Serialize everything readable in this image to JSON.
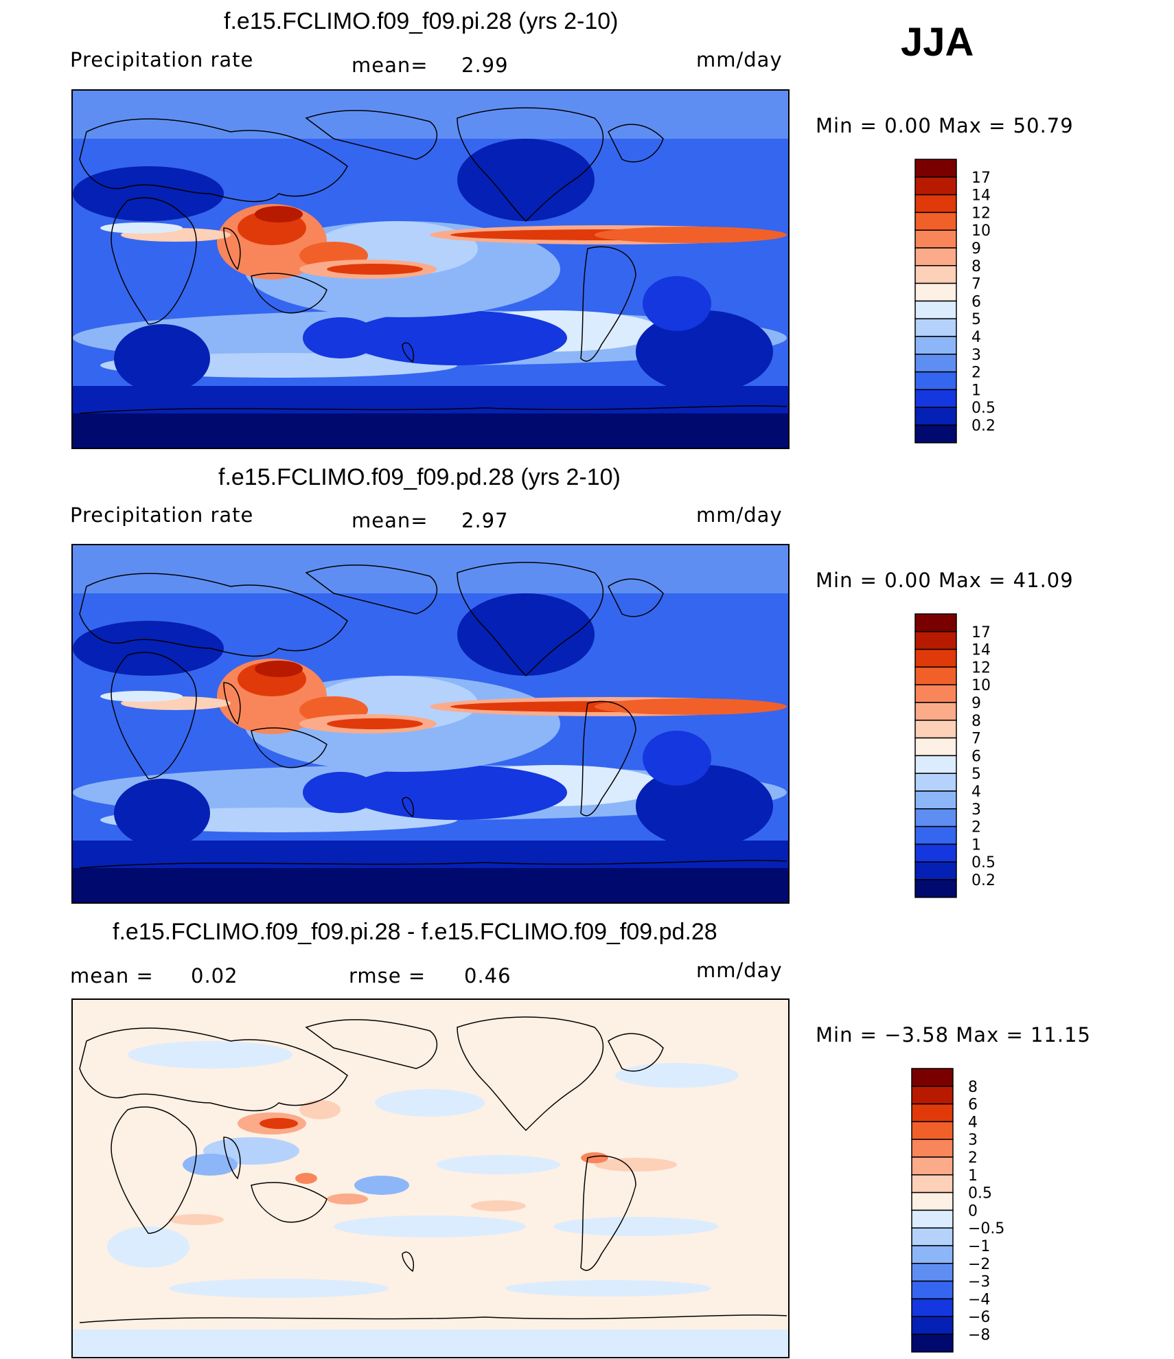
{
  "season": "JJA",
  "panels": [
    {
      "title": "f.e15.FCLIMO.f09_f09.pi.28 (yrs 2-10)",
      "left": "Precipitation  rate",
      "stat1_label": "mean=",
      "stat1_value": "2.99",
      "stat2_label": "",
      "stat2_value": "",
      "units": "mm/day",
      "minmax": "Min  =      0.00  Max  =     50.79",
      "kind": "abs"
    },
    {
      "title": "f.e15.FCLIMO.f09_f09.pd.28 (yrs 2-10)",
      "left": "Precipitation  rate",
      "stat1_label": "mean=",
      "stat1_value": "2.97",
      "stat2_label": "",
      "stat2_value": "",
      "units": "mm/day",
      "minmax": "Min  =      0.00  Max  =     41.09",
      "kind": "abs"
    },
    {
      "title": "f.e15.FCLIMO.f09_f09.pi.28 - f.e15.FCLIMO.f09_f09.pd.28",
      "left": "mean  =",
      "stat1_label": "0.02",
      "stat1_value": "",
      "stat2_label": "rmse  =",
      "stat2_value": "0.46",
      "units": "mm/day",
      "minmax": "Min  =    −3.58  Max  =    11.15",
      "kind": "diff"
    }
  ],
  "chart_data": [
    {
      "type": "heatmap",
      "title": "f.e15.FCLIMO.f09_f09.pi.28 (yrs 2-10)",
      "variable": "Precipitation rate",
      "units": "mm/day",
      "mean": 2.99,
      "min": 0.0,
      "max": 50.79,
      "colorbar_levels": [
        "17",
        "14",
        "12",
        "10",
        "9",
        "8",
        "7",
        "6",
        "5",
        "4",
        "3",
        "2",
        "1",
        "0.5",
        "0.2"
      ],
      "colorbar_colors": [
        "#7a0000",
        "#b81a00",
        "#e03a0a",
        "#f2602a",
        "#f8865a",
        "#fbab8a",
        "#fdd0b8",
        "#fdf0e4",
        "#dcecff",
        "#b4d2fc",
        "#8db6f8",
        "#5f8ef3",
        "#3566ef",
        "#1437df",
        "#0520b4",
        "#00096e"
      ]
    },
    {
      "type": "heatmap",
      "title": "f.e15.FCLIMO.f09_f09.pd.28 (yrs 2-10)",
      "variable": "Precipitation rate",
      "units": "mm/day",
      "mean": 2.97,
      "min": 0.0,
      "max": 41.09,
      "colorbar_levels": [
        "17",
        "14",
        "12",
        "10",
        "9",
        "8",
        "7",
        "6",
        "5",
        "4",
        "3",
        "2",
        "1",
        "0.5",
        "0.2"
      ],
      "colorbar_colors": [
        "#7a0000",
        "#b81a00",
        "#e03a0a",
        "#f2602a",
        "#f8865a",
        "#fbab8a",
        "#fdd0b8",
        "#fdf0e4",
        "#dcecff",
        "#b4d2fc",
        "#8db6f8",
        "#5f8ef3",
        "#3566ef",
        "#1437df",
        "#0520b4",
        "#00096e"
      ]
    },
    {
      "type": "heatmap",
      "title": "f.e15.FCLIMO.f09_f09.pi.28 - f.e15.FCLIMO.f09_f09.pd.28",
      "units": "mm/day",
      "mean": 0.02,
      "rmse": 0.46,
      "min": -3.58,
      "max": 11.15,
      "colorbar_levels": [
        "8",
        "6",
        "4",
        "3",
        "2",
        "1",
        "0.5",
        "0",
        "−0.5",
        "−1",
        "−2",
        "−3",
        "−4",
        "−6",
        "−8"
      ],
      "colorbar_colors": [
        "#7a0000",
        "#b81a00",
        "#e03a0a",
        "#f2602a",
        "#f8865a",
        "#fbab8a",
        "#fdd0b8",
        "#fdf0e4",
        "#dcecff",
        "#b4d2fc",
        "#8db6f8",
        "#5f8ef3",
        "#3566ef",
        "#1437df",
        "#0520b4",
        "#00096e"
      ]
    }
  ]
}
